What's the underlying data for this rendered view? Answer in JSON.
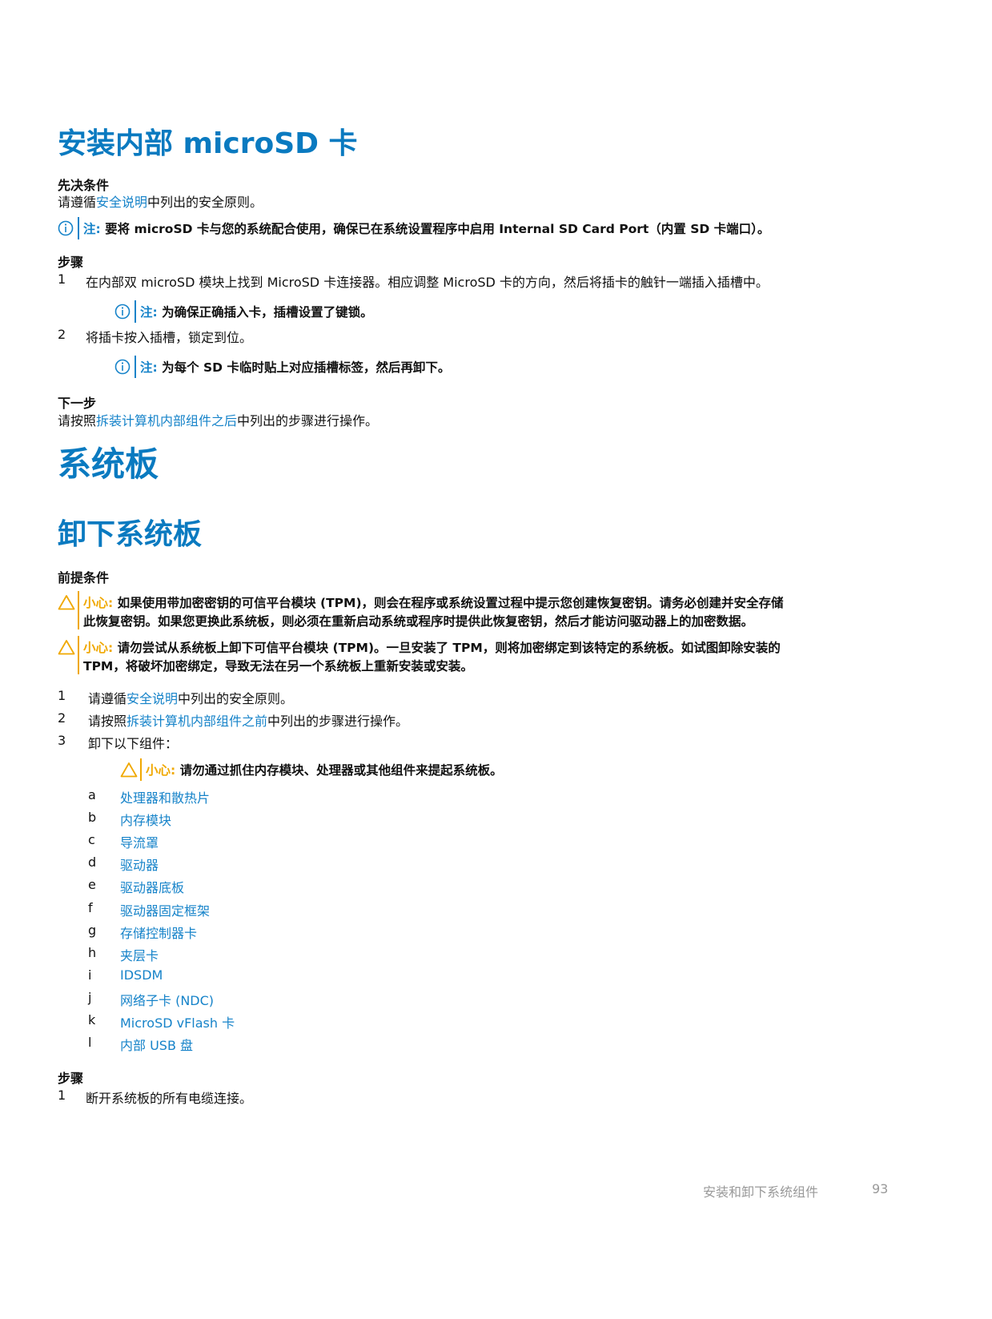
{
  "section1": {
    "title": "安装内部 microSD 卡",
    "prereq_heading": "先决条件",
    "prereq": {
      "pre": "请遵循",
      "link": "安全说明",
      "post": "中列出的安全原则。"
    },
    "note": {
      "label": "注:",
      "text": " 要将 microSD 卡与您的系统配合使用，确保已在系统设置程序中启用 Internal SD Card Port（内置 SD 卡端口）。"
    },
    "steps_heading": "步骤",
    "steps": [
      {
        "num": "1",
        "text": "在内部双 microSD 模块上找到 MicroSD 卡连接器。相应调整 MicroSD 卡的方向，然后将插卡的触针一端插入插槽中。",
        "note_label": "注:",
        "note": " 为确保正确插入卡，插槽设置了键锁。"
      },
      {
        "num": "2",
        "text": "将插卡按入插槽，锁定到位。",
        "note_label": "注:",
        "note": " 为每个 SD 卡临时贴上对应插槽标签，然后再卸下。"
      }
    ],
    "next_heading": "下一步",
    "next": {
      "pre": "请按照",
      "link": "拆装计算机内部组件之后",
      "post": "中列出的步骤进行操作。"
    }
  },
  "section2": {
    "title": "系统板"
  },
  "section3": {
    "title": "卸下系统板",
    "prereq_heading": "前提条件",
    "cautions": [
      {
        "label": "小心:",
        "line1": " 如果使用带加密密钥的可信平台模块 (TPM)，则会在程序或系统设置过程中提示您创建恢复密钥。请务必创建并安全存储",
        "line2": "此恢复密钥。如果您更换此系统板，则必须在重新启动系统或程序时提供此恢复密钥，然后才能访问驱动器上的加密数据。"
      },
      {
        "label": "小心:",
        "line1": " 请勿尝试从系统板上卸下可信平台模块 (TPM)。一旦安装了 TPM，则将加密绑定到该特定的系统板。如试图卸除安装的",
        "line2": "TPM，将破坏加密绑定，导致无法在另一个系统板上重新安装或安装。"
      }
    ],
    "prereq_steps": [
      {
        "num": "1",
        "pre": "请遵循",
        "link": "安全说明",
        "post": "中列出的安全原则。"
      },
      {
        "num": "2",
        "pre": "请按照",
        "link": "拆装计算机内部组件之前",
        "post": "中列出的步骤进行操作。"
      },
      {
        "num": "3",
        "pre": "卸下以下组件：",
        "link": "",
        "post": ""
      }
    ],
    "sub_caution": {
      "label": "小心:",
      "text": " 请勿通过抓住内存模块、处理器或其他组件来提起系统板。"
    },
    "components": [
      {
        "l": "a",
        "t": "处理器和散热片"
      },
      {
        "l": "b",
        "t": "内存模块"
      },
      {
        "l": "c",
        "t": "导流罩"
      },
      {
        "l": "d",
        "t": "驱动器"
      },
      {
        "l": "e",
        "t": "驱动器底板"
      },
      {
        "l": "f",
        "t": "驱动器固定框架"
      },
      {
        "l": "g",
        "t": "存储控制器卡"
      },
      {
        "l": "h",
        "t": "夹层卡"
      },
      {
        "l": "i",
        "t": "IDSDM"
      },
      {
        "l": "j",
        "t": "网络子卡 (NDC)"
      },
      {
        "l": "k",
        "t": "MicroSD vFlash 卡"
      },
      {
        "l": "l",
        "t": "内部 USB 盘"
      }
    ],
    "steps_heading": "步骤",
    "steps": [
      {
        "num": "1",
        "text": "断开系统板的所有电缆连接。"
      }
    ]
  },
  "footer": {
    "section": "安装和卸下系统组件",
    "page": "93"
  },
  "colors": {
    "heading": "#0a7ac0",
    "link": "#1683c9",
    "caution": "#f0a800",
    "note": "#1683c9"
  }
}
